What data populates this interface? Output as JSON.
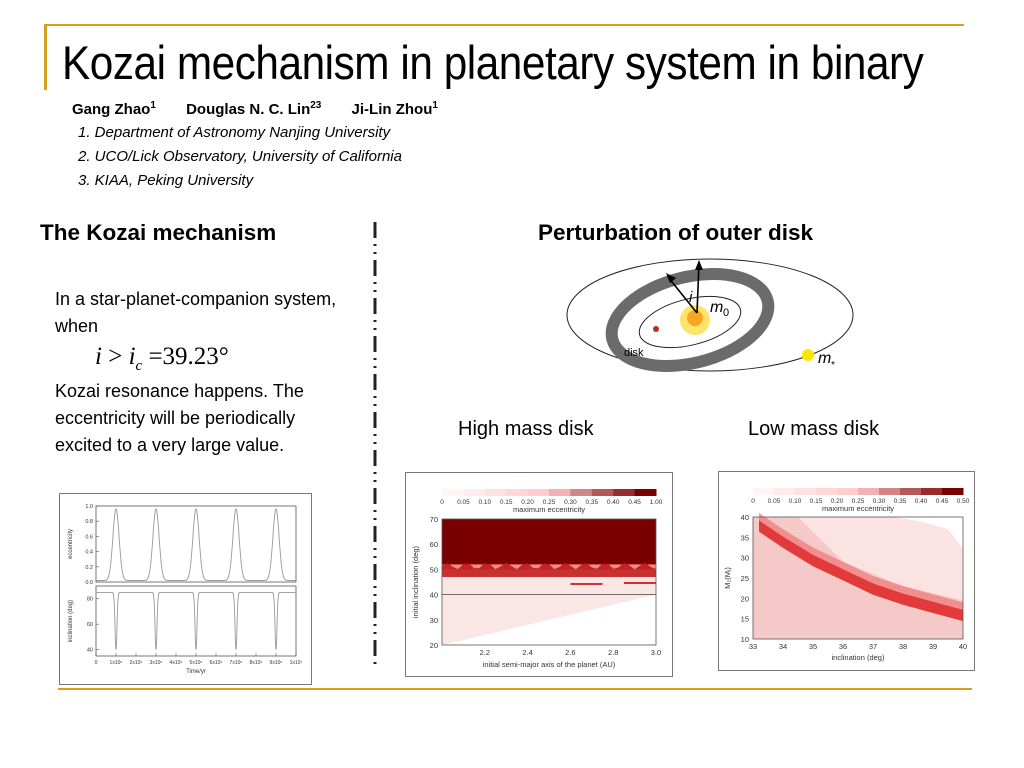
{
  "slide": {
    "title": "Kozai mechanism in planetary system in binary",
    "authors": [
      {
        "name": "Gang Zhao",
        "sup": "1"
      },
      {
        "name": "Douglas N. C. Lin",
        "sup": "23"
      },
      {
        "name": "Ji-Lin Zhou",
        "sup": "1"
      }
    ],
    "affiliations": [
      "1. Department of Astronomy Nanjing University",
      "2. UCO/Lick Observatory, University of California",
      "3. KIAA, Peking University"
    ],
    "accent_color": "#d4a020"
  },
  "left": {
    "heading": "The Kozai mechanism",
    "text1": "In a star-planet-companion system, when",
    "formula": {
      "lhs": "i",
      "gt": ">",
      "var": "i",
      "sub": "c",
      "eq": "=",
      "value": "39.23°"
    },
    "text2": "Kozai resonance happens. The eccentricity will be periodically excited to a very large value."
  },
  "right": {
    "heading": "Perturbation of outer disk",
    "diagram": {
      "label_i": "i",
      "label_m0": "m",
      "label_m0_sub": "0",
      "label_disk": "disk",
      "label_mstar": "m",
      "label_mstar_sub": "*"
    },
    "high_label": "High mass disk",
    "low_label": "Low mass disk"
  },
  "chart_data": [
    {
      "type": "line",
      "panel": "eccentricity",
      "ylabel": "eccentricity",
      "x_ticks": [
        "0",
        "1x10⁶",
        "2x10⁶",
        "3x10⁶",
        "4x10⁶",
        "5x10⁶",
        "6x10⁶",
        "7x10⁶",
        "8x10⁶",
        "9x10⁶",
        "1x10⁷"
      ],
      "xlabel": "Time/yr",
      "y_ticks": [
        "0.0",
        "0.2",
        "0.4",
        "0.6",
        "0.8",
        "1.0"
      ],
      "ylim": [
        0,
        1.0
      ],
      "xlim": [
        0,
        10000000
      ],
      "series": [
        {
          "x": [
            0,
            1000000,
            2000000,
            3000000,
            4000000,
            5000000,
            6000000,
            7000000,
            8000000,
            9000000,
            10000000
          ],
          "y": [
            0.02,
            0.95,
            0.02,
            0.96,
            0.02,
            0.96,
            0.02,
            0.96,
            0.02,
            0.96,
            0.02
          ]
        }
      ],
      "period_yr": 2000000,
      "baseline_e": 0.02,
      "peak_e": 0.96,
      "color": "#999999"
    },
    {
      "type": "line",
      "panel": "inclination",
      "ylabel": "inclination (deg)",
      "y_ticks": [
        "40",
        "60",
        "80"
      ],
      "ylim": [
        35,
        90
      ],
      "xlim": [
        0,
        10000000
      ],
      "series": [
        {
          "x": [
            0,
            1000000,
            2000000,
            3000000,
            4000000,
            5000000,
            6000000,
            7000000,
            8000000,
            9000000,
            10000000
          ],
          "y": [
            85,
            40,
            85,
            40,
            85,
            40,
            85,
            40,
            85,
            40,
            85
          ]
        }
      ],
      "baseline_inc": 85,
      "dip_inc": 40,
      "color": "#999999"
    },
    {
      "type": "heatmap",
      "title": "High mass disk",
      "colorbar_ticks": [
        "0",
        "0.05",
        "0.10",
        "0.15",
        "0.20",
        "0.25",
        "0.30",
        "0.35",
        "0.40",
        "0.45",
        "1.00"
      ],
      "colorbar_label": "maximum eccentricity",
      "xlabel": "initial semi-major axis of the planet (AU)",
      "ylabel": "initial inclination (deg)",
      "x_ticks": [
        "2.2",
        "2.4",
        "2.6",
        "2.8",
        "3.0"
      ],
      "y_ticks": [
        "20",
        "30",
        "40",
        "50",
        "60",
        "70"
      ],
      "xlim": [
        2.0,
        3.0
      ],
      "ylim": [
        20,
        70
      ],
      "hline": 40,
      "high_region_min_inc": 52
    },
    {
      "type": "heatmap",
      "title": "Low mass disk",
      "colorbar_ticks": [
        "0",
        "0.05",
        "0.10",
        "0.15",
        "0.20",
        "0.25",
        "0.30",
        "0.35",
        "0.40",
        "0.45",
        "0.50"
      ],
      "colorbar_label": "maximum eccentricity",
      "xlabel": "inclination (deg)",
      "ylabel": "M₂(Mⱼ)",
      "x_ticks": [
        "33",
        "34",
        "35",
        "36",
        "37",
        "38",
        "39",
        "40"
      ],
      "y_ticks": [
        "10",
        "15",
        "20",
        "25",
        "30",
        "35",
        "40"
      ],
      "xlim": [
        33,
        40
      ],
      "ylim": [
        10,
        40
      ],
      "band": [
        [
          33.2,
          38
        ],
        [
          34,
          34
        ],
        [
          35,
          29.5
        ],
        [
          36,
          26
        ],
        [
          37,
          22.5
        ],
        [
          38,
          20
        ],
        [
          39,
          18
        ],
        [
          40,
          16
        ]
      ]
    }
  ]
}
